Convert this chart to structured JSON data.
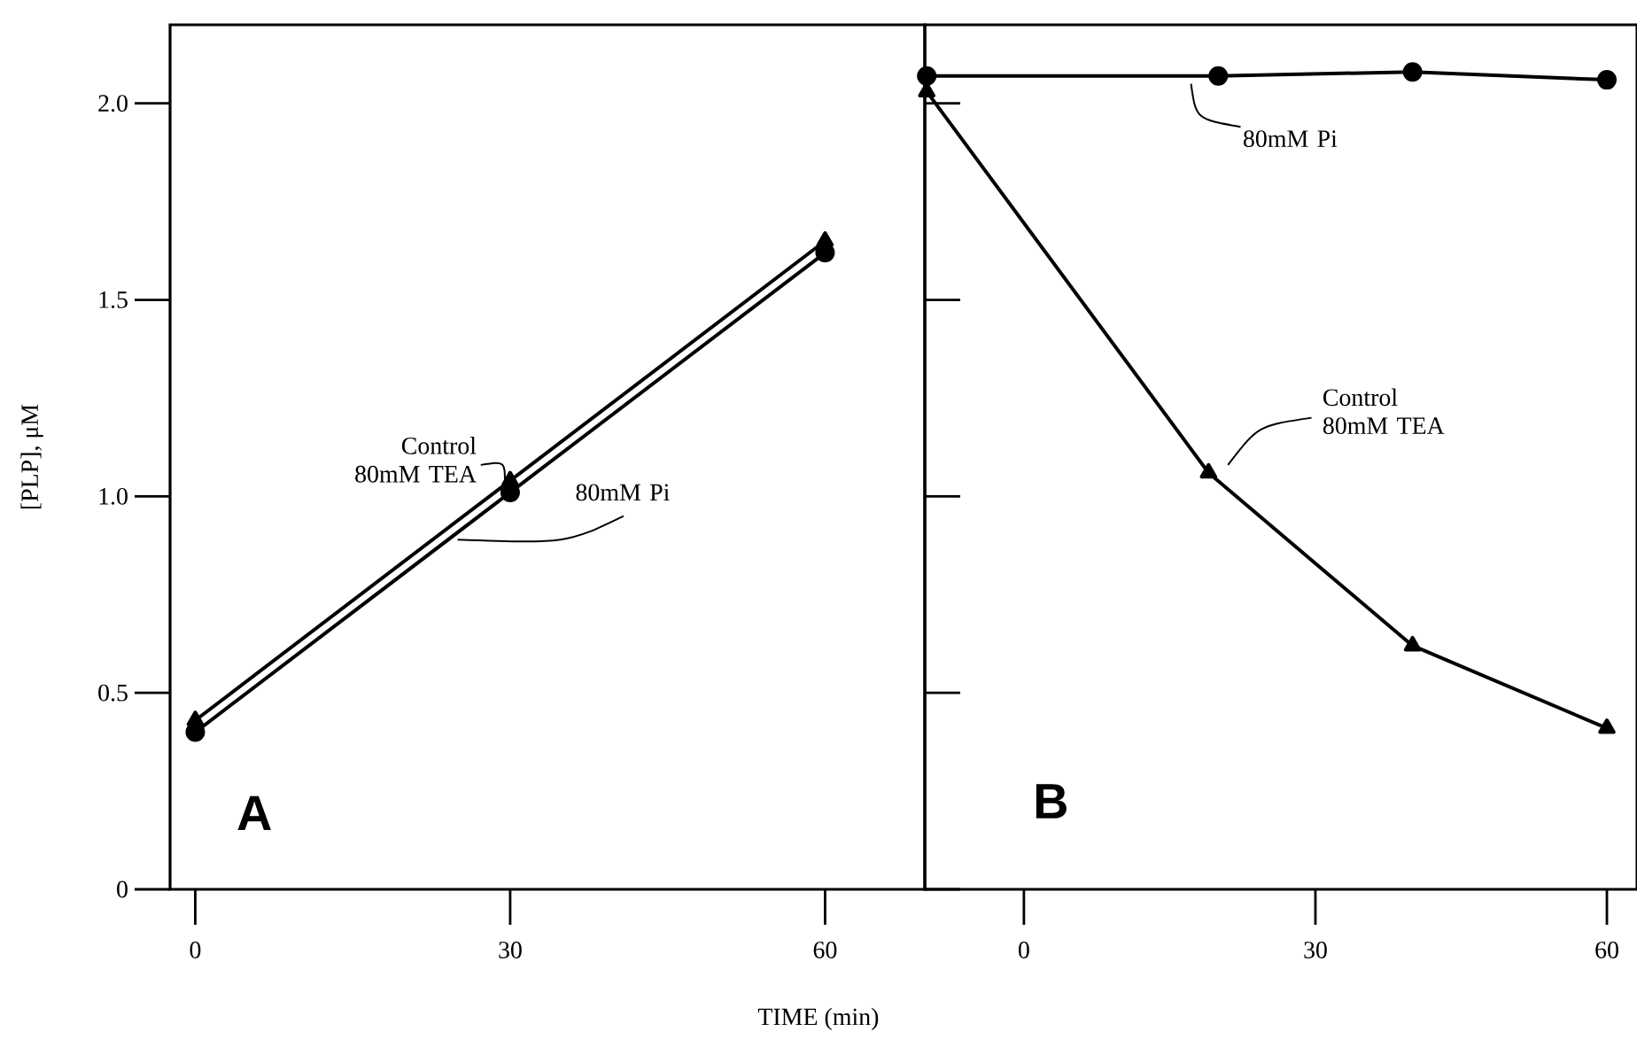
{
  "chart_data": [
    {
      "type": "line",
      "xlabel": "TIME (min)",
      "ylabel": "[PLP], μM",
      "annotations": [
        "A"
      ],
      "xlim": [
        -2.4,
        69.5
      ],
      "ylim": [
        0,
        2.2
      ],
      "xticks": [
        0,
        30,
        60
      ],
      "yticks": [
        0,
        0.5,
        {
          "value": 1,
          "label": "1.0"
        },
        1.5,
        {
          "value": 2,
          "label": "2.0"
        }
      ],
      "series": [
        {
          "name": "Control 80mM TEA",
          "color": "#000000",
          "marker": "triangle",
          "x": [
            0,
            30,
            60
          ],
          "values": [
            0.43,
            1.04,
            1.65
          ]
        },
        {
          "name": "80mM Pi",
          "color": "#000000",
          "marker": "circle",
          "x": [
            0,
            30,
            60
          ],
          "values": [
            0.4,
            1.01,
            1.62
          ]
        }
      ]
    },
    {
      "type": "line",
      "annotations": [
        "B"
      ],
      "xlim": [
        -10.2,
        63.1
      ],
      "ylim": [
        0,
        2.2
      ],
      "xticks": [
        0,
        30,
        60
      ],
      "yticks": [
        0,
        0.5,
        1,
        1.5,
        2
      ],
      "tick_labels": "x",
      "series": [
        {
          "name": "Control 80mM TEA",
          "color": "#000000",
          "marker": "triangle",
          "x": [
            -10,
            19,
            40,
            60
          ],
          "values": [
            2.03,
            1.06,
            0.62,
            0.41
          ]
        },
        {
          "name": "80mM Pi",
          "color": "#000000",
          "marker": "circle",
          "x": [
            -10,
            20,
            40,
            60
          ],
          "values": [
            2.07,
            2.07,
            2.08,
            2.06
          ]
        }
      ]
    }
  ]
}
